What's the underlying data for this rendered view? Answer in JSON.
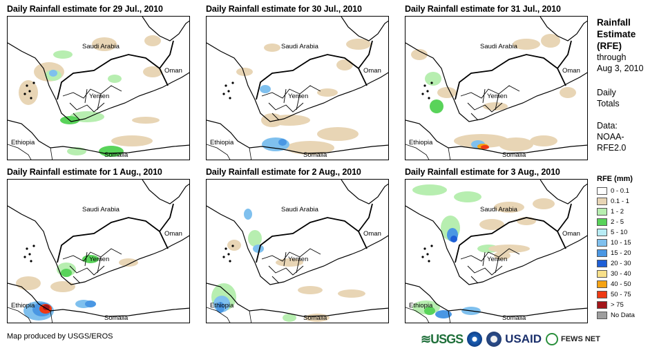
{
  "panels": [
    {
      "title": "Daily Rainfall estimate for 29 Jul., 2010"
    },
    {
      "title": "Daily Rainfall estimate for 30 Jul., 2010"
    },
    {
      "title": "Daily Rainfall estimate for 31 Jul., 2010"
    },
    {
      "title": "Daily Rainfall estimate for 1 Aug., 2010"
    },
    {
      "title": "Daily Rainfall estimate for 2 Aug., 2010"
    },
    {
      "title": "Daily Rainfall estimate for 3 Aug., 2010"
    }
  ],
  "map_labels": {
    "saudi": "Saudi Arabia",
    "oman": "Oman",
    "yemen": "Yemen",
    "ethiopia": "Ethiopia",
    "somalia": "Somalia"
  },
  "side": {
    "title1": "Rainfall",
    "title2": "Estimate",
    "title3": "(RFE)",
    "through": "through",
    "date": "Aug 3, 2010",
    "daily": "Daily",
    "totals": "Totals",
    "data_label": "Data:",
    "noaa": "NOAA-",
    "rfe": "RFE2.0"
  },
  "legend": {
    "title": "RFE (mm)",
    "items": [
      {
        "label": "0 - 0.1",
        "color": "#ffffff"
      },
      {
        "label": "0.1 - 1",
        "color": "#e8d5b5"
      },
      {
        "label": "1 - 2",
        "color": "#b7eeb0"
      },
      {
        "label": "2 - 5",
        "color": "#59d35a"
      },
      {
        "label": "5 - 10",
        "color": "#b8ecf5"
      },
      {
        "label": "10 - 15",
        "color": "#7fc0ee"
      },
      {
        "label": "15 - 20",
        "color": "#4a97e3"
      },
      {
        "label": "20 - 30",
        "color": "#1e5fd6"
      },
      {
        "label": "30 - 40",
        "color": "#f8e08a"
      },
      {
        "label": "40 - 50",
        "color": "#f5a314"
      },
      {
        "label": "50 - 75",
        "color": "#ee3a14"
      },
      {
        "label": "> 75",
        "color": "#a3161a"
      },
      {
        "label": "No Data",
        "color": "#9e9e9e"
      }
    ]
  },
  "credit": "Map produced by USGS/EROS",
  "logos": {
    "usgs": "≋USGS",
    "usaid": "USAID",
    "fews": "FEWS NET"
  }
}
